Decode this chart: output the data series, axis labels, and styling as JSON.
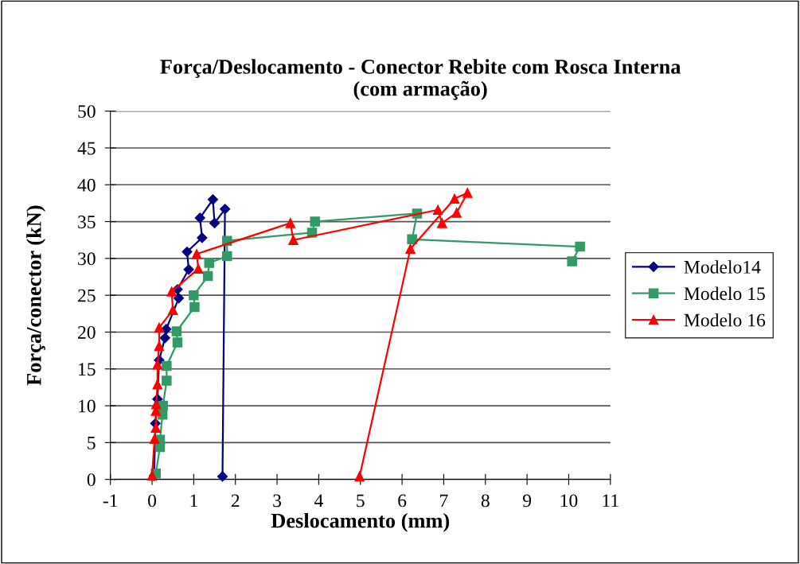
{
  "chart_data": {
    "type": "line",
    "title": "Força/Deslocamento - Conector Rebite com Rosca Interna\n(com armação)",
    "xlabel": "Deslocamento (mm)",
    "ylabel": "Força/conector (kN)",
    "xlim": [
      -1,
      11
    ],
    "xticks": [
      -1,
      0,
      1,
      2,
      3,
      4,
      5,
      6,
      7,
      8,
      9,
      10,
      11
    ],
    "ylim": [
      0,
      50
    ],
    "yticks": [
      0,
      5,
      10,
      15,
      20,
      25,
      30,
      35,
      40,
      45,
      50
    ],
    "grid": "y",
    "legend": "right",
    "series": [
      {
        "name": "Modelo14",
        "color": "#000080",
        "marker": "diamond",
        "x": [
          0.05,
          0.08,
          0.13,
          0.17,
          0.31,
          0.34,
          0.64,
          0.61,
          0.88,
          0.84,
          1.2,
          1.15,
          1.46,
          1.5,
          1.75,
          1.69
        ],
        "values": [
          0.5,
          7.6,
          10.9,
          16.2,
          19.2,
          20.4,
          24.6,
          25.8,
          28.5,
          30.9,
          32.8,
          35.5,
          38.0,
          34.8,
          36.7,
          0.4
        ]
      },
      {
        "name": "Modelo 15",
        "color": "#339966",
        "marker": "square",
        "x": [
          0.09,
          0.19,
          0.19,
          0.25,
          0.26,
          0.35,
          0.35,
          0.61,
          0.59,
          1.02,
          1.0,
          1.34,
          1.37,
          1.8,
          1.8,
          3.84,
          3.91,
          6.36,
          6.24,
          10.27,
          10.08
        ],
        "values": [
          0.8,
          4.4,
          5.4,
          8.8,
          10.0,
          13.4,
          15.4,
          18.6,
          20.1,
          23.4,
          25.0,
          27.6,
          29.4,
          30.3,
          32.4,
          33.5,
          35.0,
          36.1,
          32.6,
          31.6,
          29.6
        ]
      },
      {
        "name": "Modelo 16",
        "color": "#ff0000",
        "marker": "triangle",
        "x": [
          0.0,
          0.06,
          0.09,
          0.09,
          0.1,
          0.13,
          0.13,
          0.17,
          0.17,
          0.5,
          0.47,
          1.11,
          1.07,
          3.32,
          3.39,
          6.86,
          6.96,
          7.31,
          7.57,
          7.26,
          6.2,
          4.98
        ],
        "values": [
          0.5,
          5.5,
          7.0,
          9.3,
          10.2,
          12.9,
          15.6,
          18.1,
          20.6,
          23.0,
          25.5,
          28.6,
          30.6,
          34.8,
          32.5,
          36.6,
          34.8,
          36.2,
          38.9,
          38.1,
          31.3,
          0.4
        ]
      }
    ]
  }
}
